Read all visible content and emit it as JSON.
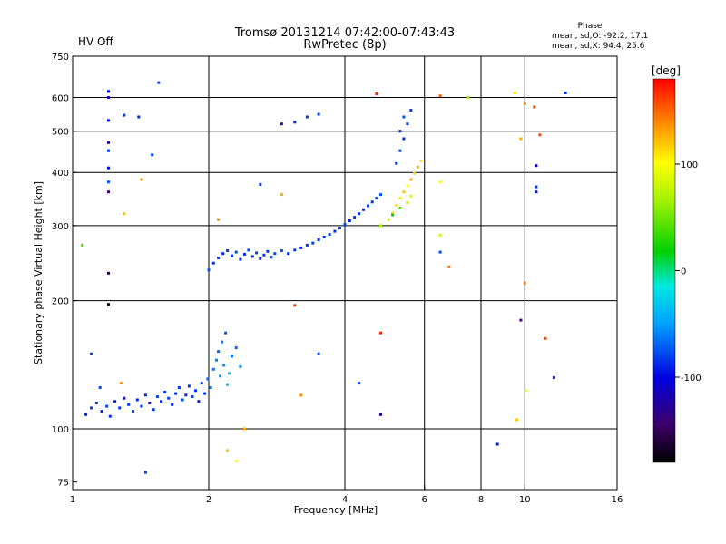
{
  "header": {
    "title": "Tromsø 20131214 07:42:00-07:43:43",
    "subtitle": "RwPretec (8p)",
    "status": "HV Off",
    "status_color": "#cc0000"
  },
  "phase_info": {
    "heading": "Phase",
    "line_o": "mean, sd,O: -92.2, 17.1",
    "line_x": "mean, sd,X: 94.4, 25.6"
  },
  "colorbar": {
    "unit": "[deg]",
    "ticks": [
      {
        "label": "100",
        "value": 100
      },
      {
        "label": "0",
        "value": 0
      },
      {
        "label": "-100",
        "value": -100
      }
    ],
    "range": [
      -180,
      180
    ]
  },
  "chart_data": {
    "type": "scatter",
    "xlabel": "Frequency [MHz]",
    "ylabel": "Stationary phase Virtual Height [km]",
    "xscale": "log2",
    "yscale": "log",
    "xlim": [
      1,
      16
    ],
    "ylim": [
      72,
      750
    ],
    "x_ticks": [
      {
        "label": "1",
        "value": 1
      },
      {
        "label": "2",
        "value": 2
      },
      {
        "label": "4",
        "value": 4
      },
      {
        "label": "6",
        "value": 6
      },
      {
        "label": "8",
        "value": 8
      },
      {
        "label": "10",
        "value": 10
      },
      {
        "label": "16",
        "value": 16
      }
    ],
    "y_ticks": [
      {
        "label": "75",
        "value": 75
      },
      {
        "label": "100",
        "value": 100
      },
      {
        "label": "200",
        "value": 200
      },
      {
        "label": "300",
        "value": 300
      },
      {
        "label": "400",
        "value": 400
      },
      {
        "label": "500",
        "value": 500
      },
      {
        "label": "600",
        "value": 600
      },
      {
        "label": "750",
        "value": 750
      }
    ],
    "x_grid": [
      2,
      4,
      6,
      8,
      10
    ],
    "y_grid": [
      100,
      200,
      300,
      400,
      500,
      600
    ],
    "grid": true,
    "color_by": "phase [deg]",
    "points": [
      [
        1.07,
        108,
        -105
      ],
      [
        1.1,
        112,
        -100
      ],
      [
        1.13,
        115,
        -98
      ],
      [
        1.16,
        110,
        -110
      ],
      [
        1.19,
        113,
        -95
      ],
      [
        1.21,
        107,
        -102
      ],
      [
        1.24,
        116,
        -108
      ],
      [
        1.27,
        112,
        -97
      ],
      [
        1.3,
        118,
        -112
      ],
      [
        1.33,
        114,
        -100
      ],
      [
        1.36,
        110,
        -92
      ],
      [
        1.39,
        117,
        -105
      ],
      [
        1.42,
        113,
        -99
      ],
      [
        1.45,
        120,
        -103
      ],
      [
        1.48,
        115,
        -110
      ],
      [
        1.51,
        111,
        -98
      ],
      [
        1.54,
        119,
        -93
      ],
      [
        1.57,
        116,
        -107
      ],
      [
        1.6,
        122,
        -101
      ],
      [
        1.63,
        118,
        -96
      ],
      [
        1.66,
        114,
        -112
      ],
      [
        1.69,
        121,
        -104
      ],
      [
        1.72,
        125,
        -99
      ],
      [
        1.75,
        117,
        -90
      ],
      [
        1.78,
        120,
        -108
      ],
      [
        1.81,
        126,
        -103
      ],
      [
        1.84,
        119,
        -95
      ],
      [
        1.87,
        123,
        -100
      ],
      [
        1.9,
        116,
        -110
      ],
      [
        1.93,
        128,
        -88
      ],
      [
        1.96,
        121,
        -97
      ],
      [
        1.99,
        131,
        -85
      ],
      [
        2.02,
        125,
        -80
      ],
      [
        2.05,
        138,
        -75
      ],
      [
        2.08,
        145,
        -70
      ],
      [
        2.1,
        152,
        -82
      ],
      [
        2.12,
        133,
        -60
      ],
      [
        2.14,
        160,
        -78
      ],
      [
        2.16,
        141,
        -65
      ],
      [
        2.18,
        168,
        -88
      ],
      [
        2.2,
        127,
        -50
      ],
      [
        2.22,
        135,
        -40
      ],
      [
        2.25,
        148,
        -72
      ],
      [
        2.3,
        155,
        -84
      ],
      [
        2.35,
        140,
        -66
      ],
      [
        2.0,
        236,
        -90
      ],
      [
        2.05,
        245,
        -100
      ],
      [
        2.1,
        252,
        -95
      ],
      [
        2.15,
        258,
        -105
      ],
      [
        2.2,
        262,
        -98
      ],
      [
        2.25,
        255,
        -102
      ],
      [
        2.3,
        260,
        -96
      ],
      [
        2.35,
        250,
        -108
      ],
      [
        2.4,
        257,
        -100
      ],
      [
        2.45,
        263,
        -94
      ],
      [
        2.5,
        254,
        -103
      ],
      [
        2.55,
        259,
        -99
      ],
      [
        2.6,
        251,
        -106
      ],
      [
        2.65,
        256,
        -97
      ],
      [
        2.7,
        261,
        -101
      ],
      [
        2.75,
        253,
        -95
      ],
      [
        2.8,
        258,
        -92
      ],
      [
        2.9,
        262,
        -90
      ],
      [
        3.0,
        258,
        -105
      ],
      [
        3.1,
        263,
        -98
      ],
      [
        3.2,
        266,
        -108
      ],
      [
        3.3,
        270,
        -102
      ],
      [
        3.4,
        273,
        -96
      ],
      [
        3.5,
        278,
        -110
      ],
      [
        3.6,
        282,
        -100
      ],
      [
        3.7,
        286,
        -94
      ],
      [
        3.8,
        291,
        -104
      ],
      [
        3.9,
        296,
        -99
      ],
      [
        4.0,
        302,
        -93
      ],
      [
        4.1,
        308,
        -106
      ],
      [
        4.2,
        314,
        -100
      ],
      [
        4.3,
        320,
        -95
      ],
      [
        4.4,
        327,
        -102
      ],
      [
        4.5,
        334,
        -97
      ],
      [
        4.6,
        341,
        -104
      ],
      [
        4.7,
        348,
        -95
      ],
      [
        4.8,
        355,
        -88
      ],
      [
        4.8,
        300,
        60
      ],
      [
        5.0,
        310,
        80
      ],
      [
        5.1,
        322,
        95
      ],
      [
        5.2,
        335,
        110
      ],
      [
        5.3,
        348,
        90
      ],
      [
        5.4,
        360,
        120
      ],
      [
        5.5,
        372,
        100
      ],
      [
        5.6,
        385,
        130
      ],
      [
        5.7,
        398,
        115
      ],
      [
        5.8,
        412,
        125
      ],
      [
        5.9,
        426,
        108
      ],
      [
        5.5,
        340,
        70
      ],
      [
        5.3,
        330,
        40
      ],
      [
        5.1,
        318,
        20
      ],
      [
        5.6,
        352,
        85
      ],
      [
        5.2,
        420,
        -100
      ],
      [
        5.3,
        450,
        -95
      ],
      [
        5.4,
        480,
        -105
      ],
      [
        5.5,
        520,
        -98
      ],
      [
        5.6,
        560,
        -102
      ],
      [
        5.4,
        540,
        -90
      ],
      [
        5.3,
        500,
        -108
      ],
      [
        2.9,
        520,
        -110
      ],
      [
        3.1,
        525,
        -104
      ],
      [
        3.3,
        540,
        -100
      ],
      [
        3.5,
        548,
        -96
      ],
      [
        1.2,
        620,
        -120
      ],
      [
        1.2,
        600,
        -130
      ],
      [
        1.2,
        530,
        -110
      ],
      [
        1.2,
        470,
        -140
      ],
      [
        1.2,
        450,
        -100
      ],
      [
        1.2,
        410,
        -115
      ],
      [
        1.2,
        380,
        -90
      ],
      [
        1.2,
        360,
        -150
      ],
      [
        1.2,
        232,
        -160
      ],
      [
        1.2,
        196,
        -170
      ],
      [
        1.3,
        545,
        -100
      ],
      [
        1.4,
        540,
        -105
      ],
      [
        1.5,
        440,
        -95
      ],
      [
        1.55,
        650,
        -100
      ],
      [
        1.42,
        385,
        140
      ],
      [
        1.3,
        320,
        120
      ],
      [
        1.05,
        270,
        40
      ],
      [
        1.1,
        150,
        -100
      ],
      [
        1.15,
        125,
        -90
      ],
      [
        1.28,
        128,
        140
      ],
      [
        1.45,
        79,
        -95
      ],
      [
        6.5,
        605,
        160
      ],
      [
        6.5,
        380,
        100
      ],
      [
        6.5,
        285,
        80
      ],
      [
        6.5,
        260,
        -95
      ],
      [
        6.8,
        240,
        150
      ],
      [
        7.5,
        600,
        60
      ],
      [
        8.7,
        92,
        -110
      ],
      [
        9.5,
        615,
        110
      ],
      [
        9.6,
        105,
        120
      ],
      [
        9.8,
        480,
        130
      ],
      [
        10.0,
        580,
        140
      ],
      [
        10.0,
        220,
        150
      ],
      [
        10.1,
        123,
        100
      ],
      [
        10.5,
        570,
        160
      ],
      [
        10.6,
        415,
        -120
      ],
      [
        10.6,
        370,
        -100
      ],
      [
        10.6,
        360,
        -110
      ],
      [
        10.8,
        490,
        160
      ],
      [
        11.1,
        163,
        160
      ],
      [
        11.6,
        132,
        -110
      ],
      [
        12.3,
        615,
        -100
      ],
      [
        9.8,
        180,
        -150
      ],
      [
        2.1,
        310,
        140
      ],
      [
        2.2,
        89,
        120
      ],
      [
        2.3,
        84,
        100
      ],
      [
        2.4,
        100,
        130
      ],
      [
        2.6,
        375,
        -100
      ],
      [
        2.9,
        355,
        130
      ],
      [
        3.1,
        195,
        160
      ],
      [
        3.2,
        120,
        140
      ],
      [
        3.5,
        150,
        -90
      ],
      [
        4.3,
        128,
        -90
      ],
      [
        4.7,
        612,
        170
      ],
      [
        4.8,
        168,
        170
      ],
      [
        4.8,
        108,
        -140
      ]
    ]
  }
}
